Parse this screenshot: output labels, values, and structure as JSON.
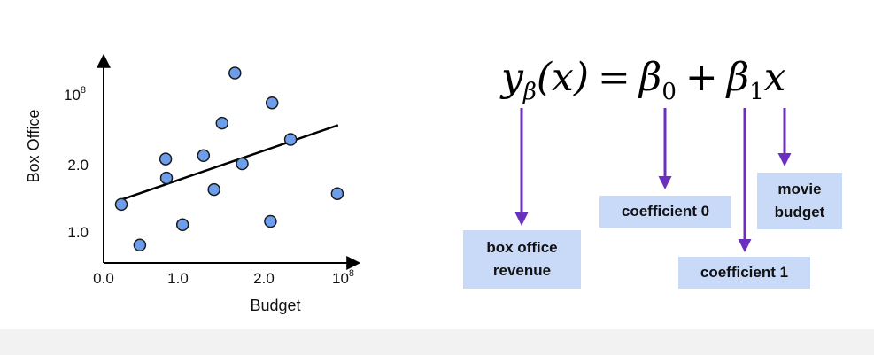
{
  "equation": {
    "lhs": "y",
    "lhs_sub": "β",
    "arg": "(x)",
    "equals": "=",
    "b0": "β",
    "b0_sub": "0",
    "plus": "+",
    "b1": "β",
    "b1_sub": "1",
    "x": "x"
  },
  "labels": {
    "box_office_revenue": "box office\nrevenue",
    "coefficient_0": "coefficient 0",
    "coefficient_1": "coefficient 1",
    "movie_budget": "movie\nbudget"
  },
  "colors": {
    "arrow": "#6a2fbf",
    "label_bg": "#c9daf8",
    "point_fill": "#6d9eeb",
    "point_stroke": "#1a1a1a"
  },
  "chart_data": {
    "type": "scatter",
    "xlabel": "Budget",
    "ylabel": "Box Office",
    "x_ticks": [
      {
        "value": 0.0,
        "label": "0.0"
      },
      {
        "value": 1.0,
        "label": "1.0"
      },
      {
        "value": 2.0,
        "label": "2.0"
      },
      {
        "value": 3.0,
        "base": "10",
        "exp": "8"
      }
    ],
    "y_ticks": [
      {
        "value": 1.0,
        "label": "1.0"
      },
      {
        "value": 2.0,
        "label": "2.0"
      },
      {
        "value": 3.0,
        "base": "10",
        "exp": "8"
      }
    ],
    "xlim": [
      0,
      3.2
    ],
    "ylim": [
      0.5,
      3.9
    ],
    "points": [
      {
        "x": 0.22,
        "y": 1.4
      },
      {
        "x": 0.45,
        "y": 0.8
      },
      {
        "x": 0.77,
        "y": 2.07
      },
      {
        "x": 0.78,
        "y": 1.79
      },
      {
        "x": 0.98,
        "y": 1.1
      },
      {
        "x": 1.24,
        "y": 2.12
      },
      {
        "x": 1.37,
        "y": 1.62
      },
      {
        "x": 1.47,
        "y": 2.6
      },
      {
        "x": 1.63,
        "y": 3.34
      },
      {
        "x": 1.72,
        "y": 2.0
      },
      {
        "x": 2.07,
        "y": 1.15
      },
      {
        "x": 2.09,
        "y": 2.9
      },
      {
        "x": 2.32,
        "y": 2.36
      },
      {
        "x": 2.9,
        "y": 1.56
      }
    ],
    "fit_line": {
      "x": [
        0.17,
        2.91
      ],
      "y": [
        1.45,
        2.57
      ]
    },
    "grid": false
  }
}
